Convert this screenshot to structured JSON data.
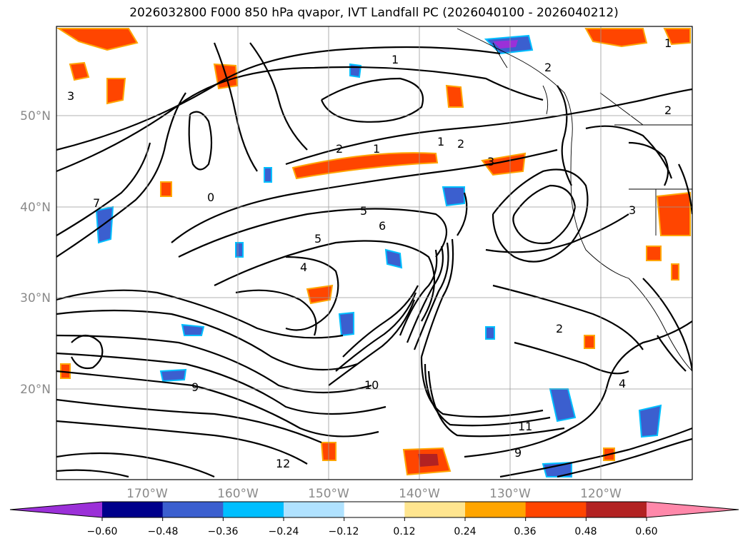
{
  "title": "2026032800 F000 850 hPa qvapor, IVT Landfall PC (2026040100 - 2026040212)",
  "map": {
    "lat_ticks": [
      "50°N",
      "40°N",
      "30°N",
      "20°N"
    ],
    "lon_ticks": [
      "170°W",
      "160°W",
      "150°W",
      "140°W",
      "130°W",
      "120°W"
    ],
    "grid": true
  },
  "colorbar": {
    "labels": [
      "−0.60",
      "−0.48",
      "−0.36",
      "−0.24",
      "−0.12",
      "0.12",
      "0.24",
      "0.36",
      "0.48",
      "0.60"
    ],
    "colors": [
      "#9b30d8",
      "#00008b",
      "#3b5fcf",
      "#00bfff",
      "#b0e2ff",
      "#ffffff",
      "#ffe58f",
      "#ffa500",
      "#ff4500",
      "#b22222",
      "#ff88aa"
    ],
    "extend": "both"
  },
  "contour_labels": [
    "1",
    "2",
    "1",
    "2",
    "3",
    "5",
    "6",
    "5",
    "4",
    "7",
    "2",
    "3",
    "2",
    "9",
    "10",
    "12",
    "11",
    "9",
    "2",
    "1",
    "0",
    "4",
    "3",
    "1"
  ]
}
